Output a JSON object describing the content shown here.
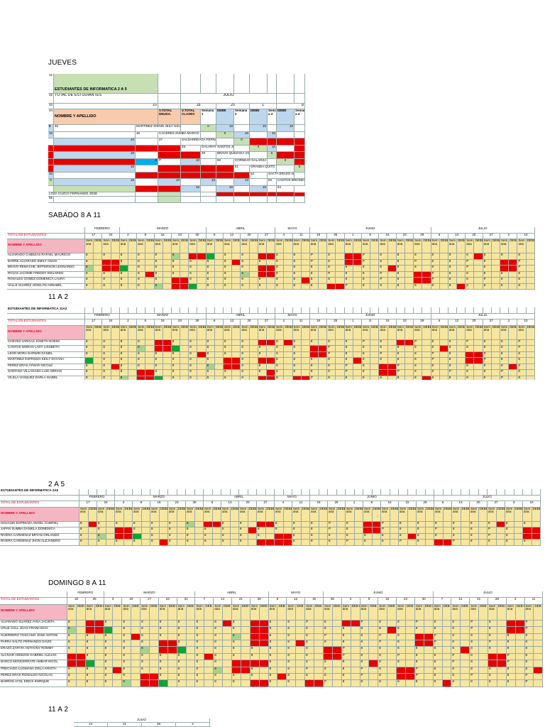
{
  "sections": [
    {
      "key": "jueves",
      "title": "JUEVES"
    },
    {
      "key": "sabado",
      "title": "SABADO 8 A 11"
    },
    {
      "key": "s11a2",
      "title": "11 A 2"
    },
    {
      "key": "s2a5",
      "title": "2 A 5"
    },
    {
      "key": "domingo",
      "title": "DOMINGO 8 A 11"
    },
    {
      "key": "s11a2b",
      "title": "11 A 2"
    }
  ],
  "jueves": {
    "title": "ESTUDIANTES DE INFORMATICA 2 A 5",
    "total_label": "TOTAL DE ESTUDIANTES",
    "total_value": "10",
    "month": "JULIO",
    "dates": [
      "18",
      "25",
      "1",
      "8"
    ],
    "row_numbers": [
      "41",
      "42",
      "43",
      "44",
      "45",
      "46",
      "47",
      "48",
      "49",
      "50",
      "51",
      "52",
      "53",
      "54",
      "55"
    ],
    "header": [
      "NOMBRE Y APELLIDO",
      "V.TOTAL DEUDA.",
      "V.TOTAL CLASES",
      "Semana 1",
      "DEBE",
      "Semana 2",
      "DEBE",
      "Seman a 3",
      "DEBE",
      "Seman a 4",
      "0"
    ],
    "students": [
      {
        "name": "MARTINEZ ZHININ JEILY NICOLE",
        "v": "0",
        "w1": "10",
        "w2": "10",
        "w3": "10",
        "w4": "10"
      },
      {
        "name": "CACERES ZUMBA MARCO JAVIER",
        "v": "0",
        "w1": "10",
        "w2": "10",
        "w3": "",
        "w4": "10"
      },
      {
        "name": "SALDARREAGA FERNANDEZ DAVID JUAN",
        "v": "0",
        "w1": "",
        "w2": "",
        "w3": "",
        "w4": ""
      },
      {
        "name": "GALARAY SANTOS JOSBETH LUIS",
        "v": "0",
        "w1": "10",
        "w2": "",
        "w3": "10",
        "w4": ""
      },
      {
        "name": "BRAVO QUEZADA VICTOR RENAN",
        "v": "0",
        "w1": "",
        "w2": "",
        "w3": "0",
        "w4": "10"
      },
      {
        "name": "CORNEJO GALARZA MICHELLE ESTEFAN",
        "v": "0",
        "w1": "",
        "w2": "10",
        "w3": "",
        "w4": ""
      },
      {
        "name": "GRANDA QUITO JESUS DANIEL",
        "v": "0",
        "w1": "10",
        "w2": "",
        "w3": "",
        "w4": ""
      },
      {
        "name": "SACTA ERAZO ALLISON BRIGGITTHE",
        "v": "0",
        "w1": "10",
        "w2": "10",
        "w3": "10",
        "w4": "10"
      },
      {
        "name": "CANTOS BRIONES SEBASTIAN ERICK",
        "v": "",
        "w1": "",
        "w2": "10",
        "w3": "10",
        "w4": "10"
      },
      {
        "name": "LOZA CUZCO FERNANDO JOSE",
        "v": "",
        "w1": "",
        "w2": "",
        "w3": "",
        "w4": ""
      }
    ],
    "extra_p": "P"
  },
  "sabado": {
    "total_label": "TOTAL DE ESTUDIANTES",
    "name_label": "NOMBRE Y APELLIDO",
    "months": [
      "FEBRERO",
      "MARZO",
      "ABRIL",
      "MAYO",
      "JUNIO",
      "JULIO"
    ],
    "dates": [
      "17",
      "24",
      "2",
      "9",
      "16",
      "23",
      "30",
      "6",
      "13",
      "20",
      "27",
      "4",
      "11"
    ],
    "dates2": [
      "18",
      "25",
      "1",
      "8",
      "15",
      "22",
      "29",
      "6",
      "13",
      "20",
      "27",
      "3",
      "10"
    ],
    "week_label": "Sem ana",
    "debe": "DEBE",
    "students": [
      "ALVARADO CABEZAS RAFAEL MAURICIO",
      "BARRE ALVARADO EMILY ANAHI",
      "BRAVO REMACHE JEFFERSON LEONARDO",
      "ROJAS JACOME FREDDY EDUARDO",
      "ROSALES GOMEZ DOMENICA LAURA",
      "VALLE SUAREZ JOSELYN ANNABEL"
    ]
  },
  "s11a2": {
    "title": "ESTUDIANTES DE INFORMATICA 11A2",
    "total_label": "TOTAL DE ESTUDIANTES",
    "name_label": "NOMBRE Y APELLIDO",
    "months": [
      "FEBRERO",
      "MARZO",
      "ABRIL",
      "MAYO",
      "JUNIO",
      "JULIO"
    ],
    "dates": [
      "17",
      "24",
      "2",
      "9",
      "16",
      "23",
      "30",
      "6",
      "13",
      "20",
      "27",
      "4",
      "11"
    ],
    "dates2": [
      "18",
      "25",
      "1",
      "8",
      "15",
      "22",
      "29",
      "6",
      "13",
      "20",
      "27",
      "3",
      "10"
    ],
    "week_label": "Sem ana",
    "debe": "DEBE",
    "students": [
      "CHEVEZ VARGAS JOSETH NOEMI",
      "CANTOS MORAN LADY LISSBETH",
      "LEON MORA DARWIN DANIEL",
      "MARTINEZ ESPINOZA KEILY DAYANA",
      "PEREZ ERAS AYMAR NICOLE",
      "SANTANA VILLAGADA LUIS ADRIAN",
      "VILELA VASQUEZ DARLA ISABEL",
      "ALVARADO ALVARADO DIEGO JOHAN"
    ]
  },
  "s2a5": {
    "title": "ESTUDIANTES DE INFORMATICA 2A5",
    "total_label": "TOTAL DE ESTUDIANTES",
    "name_label": "NOMBRE Y APELLIDO",
    "months": [
      "FEBRERO",
      "MARZO",
      "ABRIL",
      "MAYO",
      "JUNIO",
      "JULIO"
    ],
    "dates": [
      "17",
      "24",
      "2",
      "9",
      "16",
      "23",
      "30",
      "6",
      "13",
      "20",
      "27",
      "4",
      "11"
    ],
    "dates2": [
      "18",
      "25",
      "1",
      "8",
      "15",
      "22",
      "29",
      "6",
      "13",
      "20",
      "27",
      "3",
      "10"
    ],
    "week_label": "Sem ana",
    "debe": "DEBE",
    "students": [
      "HOLGUIN ESPINOZA ANGEL GABRIEL",
      "JAPAN SUMBA DANIELA DOMENICA",
      "RIVERA CARDENAZ BRYAN ORLANDO",
      "RIVERA CARDENAZ JHON ALEJANDRO",
      "VILLAMAR FARIAS KAROLINA VANESSA",
      "ZUÑIGA JEREZ JUSTIN LUCIANO"
    ]
  },
  "domingo": {
    "total_label": "TOTAL DE ESTUDIANTES",
    "name_label": "NOMBRE Y APELLIDO",
    "months": [
      "FEBRERO",
      "MARZO",
      "ABRIL",
      "MAYO",
      "JUNIO",
      "JULIO"
    ],
    "dates": [
      "18",
      "25",
      "3",
      "10",
      "17",
      "24",
      "31",
      "7",
      "14",
      "21",
      "28",
      "5",
      "12",
      "19"
    ],
    "dates2": [
      "26",
      "2",
      "9",
      "16",
      "23",
      "30",
      "7",
      "14",
      "21",
      "28",
      "4",
      "11"
    ],
    "week_label": "Sem ana",
    "debe": "DEB E",
    "students": [
      "ALVARADO SUAREZ AYDA JACINTA",
      "CRUZ COLL JOAO FRANCISCO",
      "GUERRERO TOSCANO JOSE ANTONI",
      "PARRA SALTO FERNANDO DAVID",
      "ERAZO ZAPATA ANTHONY ROMMY",
      "ALCIVAR ARMIJOS GABRIEL ALEJAN",
      "BARCO MONCERRATE AMBAR NICOL",
      "PRECIADO LUGMAÑA ZOILA KRISTH",
      "PEREZ ERAS RONALDO NICOLAS",
      "BARROS AYOL ERICK ENRIQUE"
    ]
  },
  "s11a2b": {
    "month": "JULIO",
    "dates": [
      "14",
      "21",
      "28",
      "4"
    ]
  }
}
